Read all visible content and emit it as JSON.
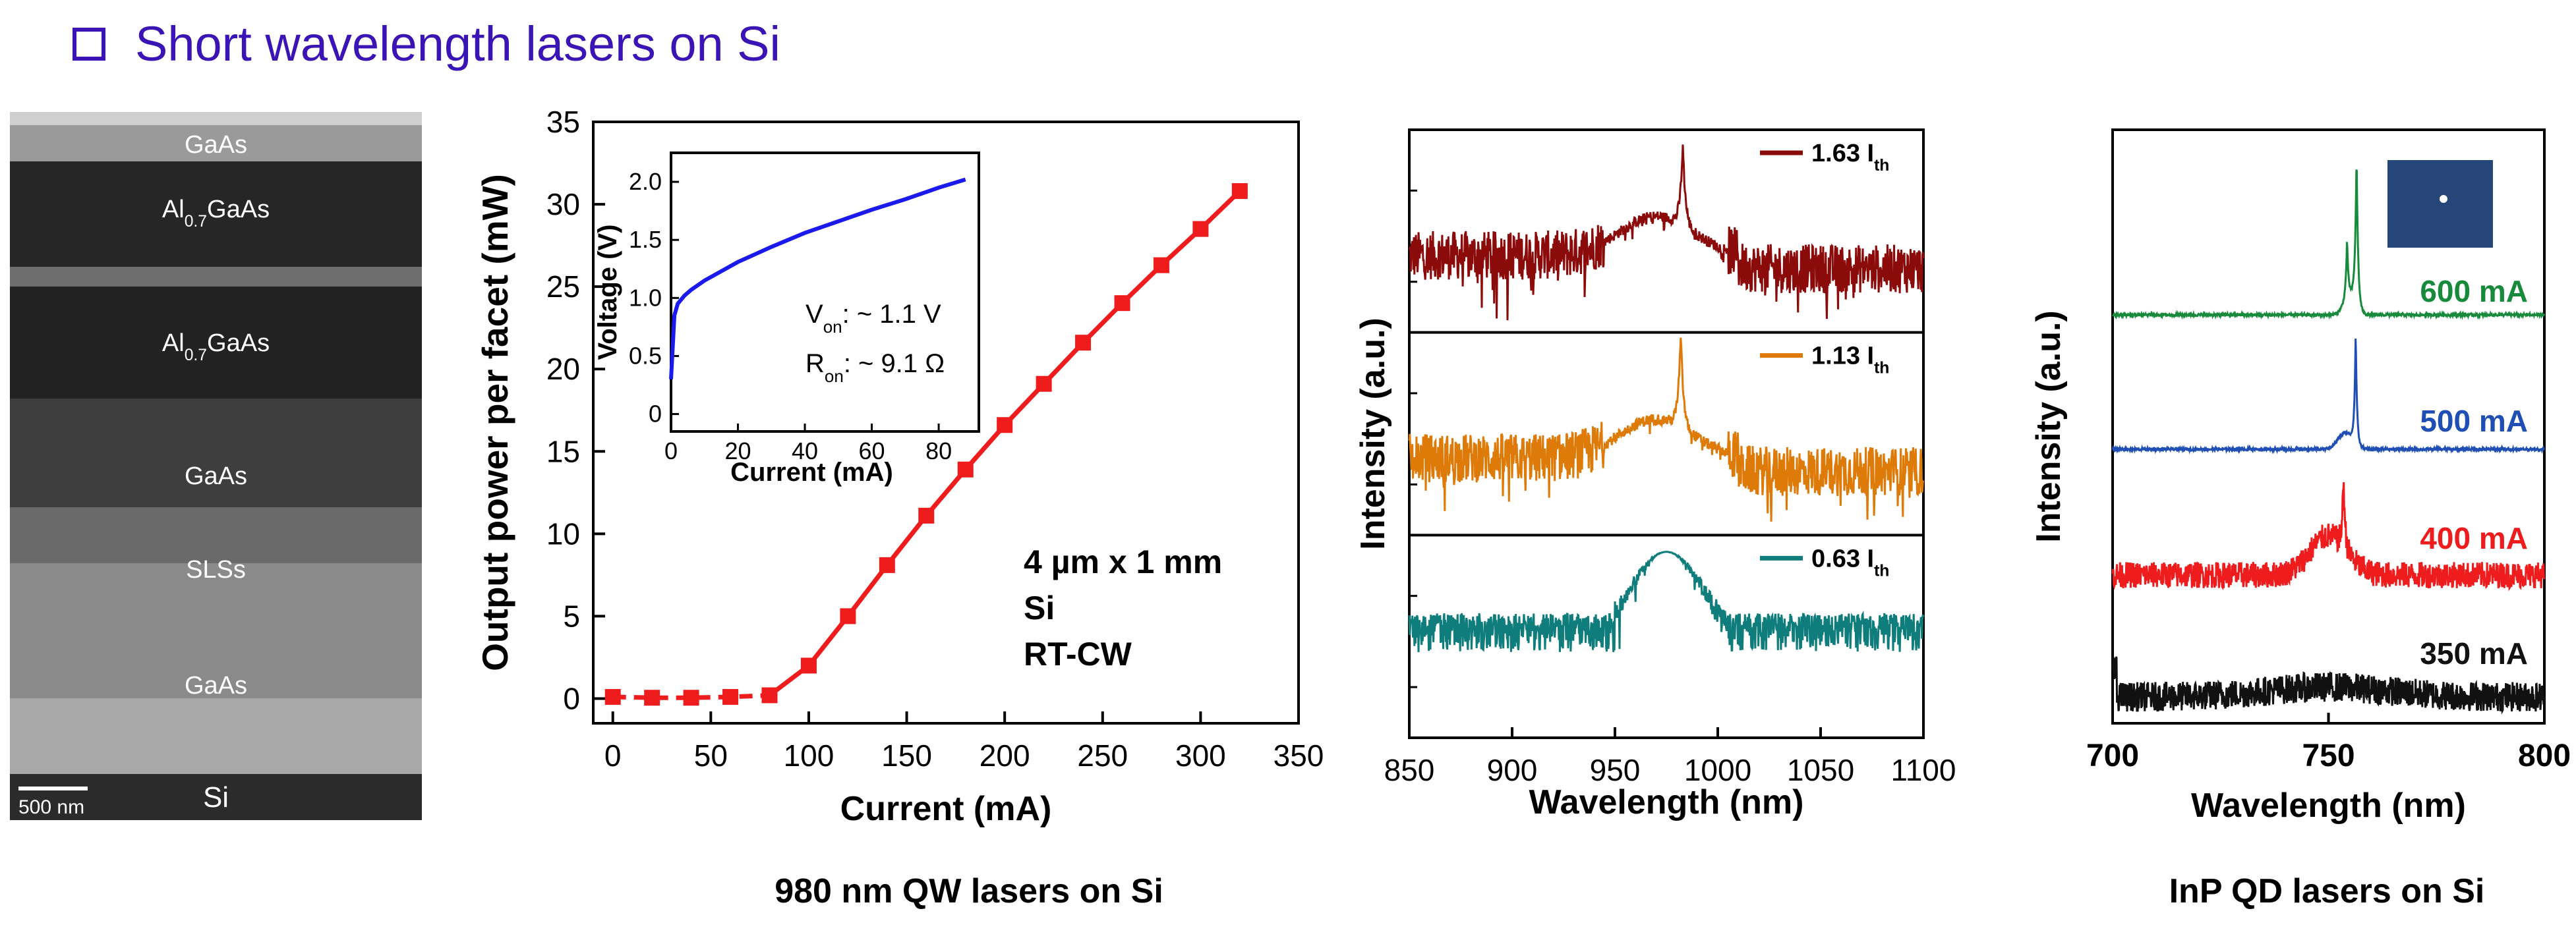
{
  "slide": {
    "title": "Short wavelength lasers on Si",
    "checkbox_icon": "checkbox-square-icon",
    "title_color": "#3a14b4",
    "caption_qw": "980 nm QW lasers on Si",
    "caption_qd": "InP QD lasers on Si"
  },
  "tem": {
    "layers": [
      {
        "label": "GaAs"
      },
      {
        "label": "Al",
        "sub": "0.7",
        "rest": "GaAs"
      },
      {
        "label": "Al",
        "sub": "0.7",
        "rest": "GaAs"
      },
      {
        "label": "GaAs"
      },
      {
        "label": "SLSs"
      },
      {
        "label": "GaAs"
      },
      {
        "label": "Si"
      }
    ],
    "scale_bar": "500 nm"
  },
  "chart_data": [
    {
      "type": "line",
      "xlabel": "Current (mA)",
      "ylabel": "Output power per facet (mW)",
      "xlim": [
        -10,
        350
      ],
      "ylim": [
        -1.5,
        35
      ],
      "xticks": [
        "0",
        "50",
        "100",
        "150",
        "200",
        "250",
        "300",
        "350"
      ],
      "yticks": [
        "0",
        "5",
        "10",
        "15",
        "20",
        "25",
        "30",
        "35"
      ],
      "color": "#ee1c1c",
      "x": [
        0,
        20,
        40,
        60,
        80,
        100,
        120,
        140,
        160,
        180,
        200,
        220,
        240,
        260,
        280,
        300,
        320
      ],
      "y": [
        0.1,
        0.05,
        0.05,
        0.1,
        0.2,
        2.0,
        5.0,
        8.1,
        11.1,
        13.9,
        16.6,
        19.1,
        21.6,
        24.0,
        26.3,
        28.5,
        30.8
      ],
      "annotation": [
        "4 µm x 1 mm",
        "Si",
        "RT-CW"
      ],
      "inset": {
        "type": "line",
        "xlabel": "Current (mA)",
        "ylabel": "Voltage (V)",
        "xlim": [
          0,
          92
        ],
        "ylim": [
          -0.15,
          2.25
        ],
        "xticks": [
          "0",
          "20",
          "40",
          "60",
          "80"
        ],
        "yticks": [
          "0",
          "0.5",
          "1.0",
          "1.5",
          "2.0"
        ],
        "color": "#1a1aee",
        "x": [
          0,
          1,
          2,
          4,
          6,
          10,
          20,
          30,
          40,
          50,
          60,
          70,
          80,
          88
        ],
        "y": [
          0.3,
          0.85,
          0.95,
          1.02,
          1.07,
          1.15,
          1.31,
          1.44,
          1.56,
          1.66,
          1.76,
          1.85,
          1.95,
          2.02
        ],
        "annotation_von": {
          "main": "V",
          "sub": "on",
          "rest": ": ~ 1.1 V"
        },
        "annotation_ron": {
          "main": "R",
          "sub": "on",
          "rest": ": ~ 9.1 Ω"
        }
      }
    },
    {
      "type": "line",
      "xlabel": "Wavelength (nm)",
      "ylabel": "Intensity (a.u.)",
      "xlim": [
        850,
        1100
      ],
      "xticks": [
        "850",
        "900",
        "950",
        "1000",
        "1050",
        "1100"
      ],
      "series": [
        {
          "name": "1.63 I",
          "sub": "th",
          "color": "#8b0a0a",
          "peak": 983
        },
        {
          "name": "1.13 I",
          "sub": "th",
          "color": "#de7a08",
          "peak": 982
        },
        {
          "name": "0.63 I",
          "sub": "th",
          "color": "#0e7d7b",
          "peak": 975
        }
      ]
    },
    {
      "type": "line",
      "xlabel": "Wavelength (nm)",
      "ylabel": "Intensity (a.u.)",
      "xlim": [
        700,
        800
      ],
      "xticks": [
        "700",
        "750",
        "800"
      ],
      "series": [
        {
          "name": "600 mA",
          "color": "#178a3c",
          "peak": 756
        },
        {
          "name": "500 mA",
          "color": "#1f4fb4",
          "peak": 756
        },
        {
          "name": "400 mA",
          "color": "#ee1c1c",
          "peak": 753
        },
        {
          "name": "350 mA",
          "color": "#111111",
          "peak": 750
        }
      ]
    }
  ]
}
